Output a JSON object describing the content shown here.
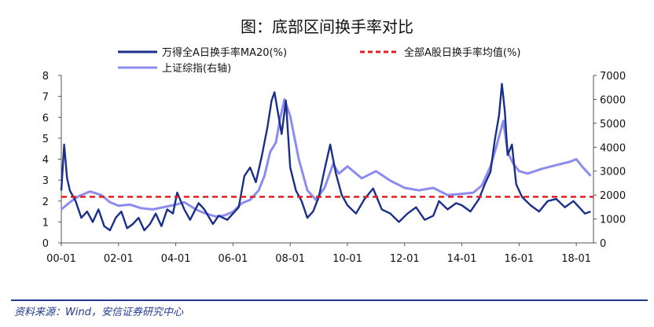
{
  "title": "图：底部区间换手率对比",
  "source": "资料来源：Wind，安信证券研究中心",
  "chart_data": {
    "type": "line",
    "x_tick_labels": [
      "00-01",
      "02-01",
      "04-01",
      "06-01",
      "08-01",
      "10-01",
      "12-01",
      "14-01",
      "16-01",
      "18-01"
    ],
    "x_range": [
      2000.0,
      2018.6
    ],
    "y_left": {
      "range": [
        0,
        8
      ],
      "ticks": [
        0,
        1,
        2,
        3,
        4,
        5,
        6,
        7,
        8
      ]
    },
    "y_right": {
      "range": [
        0,
        7000
      ],
      "ticks": [
        0,
        1000,
        2000,
        3000,
        4000,
        5000,
        6000,
        7000
      ]
    },
    "grid": false,
    "legend_position": "top",
    "series": [
      {
        "name": "万得全A日换手率MA20(%)",
        "axis": "left",
        "color": "#1a2f8a",
        "style": "solid",
        "x": [
          2000.0,
          2000.1,
          2000.2,
          2000.3,
          2000.5,
          2000.7,
          2000.9,
          2001.1,
          2001.3,
          2001.5,
          2001.7,
          2001.9,
          2002.1,
          2002.3,
          2002.5,
          2002.7,
          2002.9,
          2003.1,
          2003.3,
          2003.5,
          2003.7,
          2003.9,
          2004.05,
          2004.3,
          2004.5,
          2004.8,
          2005.0,
          2005.3,
          2005.5,
          2005.8,
          2006.0,
          2006.2,
          2006.4,
          2006.6,
          2006.8,
          2007.0,
          2007.2,
          2007.35,
          2007.45,
          2007.55,
          2007.7,
          2007.85,
          2008.0,
          2008.2,
          2008.4,
          2008.6,
          2008.8,
          2009.0,
          2009.2,
          2009.4,
          2009.6,
          2009.8,
          2010.0,
          2010.3,
          2010.6,
          2010.9,
          2011.2,
          2011.5,
          2011.8,
          2012.1,
          2012.4,
          2012.7,
          2013.0,
          2013.2,
          2013.5,
          2013.8,
          2014.0,
          2014.3,
          2014.6,
          2014.8,
          2015.0,
          2015.15,
          2015.3,
          2015.4,
          2015.5,
          2015.6,
          2015.75,
          2015.9,
          2016.1,
          2016.4,
          2016.7,
          2017.0,
          2017.3,
          2017.6,
          2017.9,
          2018.1,
          2018.3,
          2018.5
        ],
        "values": [
          2.5,
          4.7,
          3.1,
          2.5,
          2.0,
          1.2,
          1.5,
          1.0,
          1.6,
          0.8,
          0.6,
          1.2,
          1.5,
          0.7,
          0.9,
          1.2,
          0.6,
          0.9,
          1.4,
          0.8,
          1.6,
          1.4,
          2.4,
          1.6,
          1.1,
          1.9,
          1.6,
          0.9,
          1.3,
          1.1,
          1.4,
          1.7,
          3.2,
          3.6,
          2.9,
          4.1,
          5.5,
          6.8,
          7.2,
          6.4,
          5.2,
          6.8,
          3.6,
          2.5,
          2.0,
          1.2,
          1.5,
          2.2,
          3.5,
          4.7,
          3.3,
          2.3,
          1.8,
          1.4,
          2.1,
          2.6,
          1.6,
          1.4,
          1.0,
          1.4,
          1.7,
          1.1,
          1.3,
          2.0,
          1.6,
          1.9,
          1.8,
          1.5,
          2.1,
          2.8,
          3.4,
          4.9,
          6.1,
          7.6,
          6.3,
          4.2,
          4.7,
          2.8,
          2.2,
          1.8,
          1.5,
          2.0,
          2.1,
          1.7,
          2.0,
          1.7,
          1.4,
          1.5
        ]
      },
      {
        "name": "全部A股日换手率均值(%)",
        "axis": "left",
        "color": "#e02020",
        "style": "dashed",
        "x": [
          2000.0,
          2018.6
        ],
        "values": [
          2.2,
          2.2
        ]
      },
      {
        "name": "上证综指(右轴)",
        "axis": "right",
        "color": "#8c8cf0",
        "style": "solid",
        "x": [
          2000.0,
          2000.3,
          2000.6,
          2001.0,
          2001.4,
          2001.7,
          2002.0,
          2002.4,
          2002.8,
          2003.2,
          2003.6,
          2004.0,
          2004.3,
          2004.7,
          2005.0,
          2005.4,
          2005.7,
          2006.0,
          2006.3,
          2006.6,
          2006.9,
          2007.1,
          2007.3,
          2007.5,
          2007.65,
          2007.8,
          2008.0,
          2008.3,
          2008.6,
          2008.9,
          2009.2,
          2009.5,
          2009.7,
          2010.0,
          2010.5,
          2011.0,
          2011.5,
          2012.0,
          2012.5,
          2013.0,
          2013.5,
          2014.0,
          2014.4,
          2014.7,
          2015.0,
          2015.2,
          2015.45,
          2015.6,
          2015.8,
          2016.0,
          2016.3,
          2016.8,
          2017.3,
          2017.8,
          2018.0,
          2018.2,
          2018.5
        ],
        "values": [
          1400,
          1700,
          1950,
          2150,
          2000,
          1700,
          1550,
          1600,
          1450,
          1400,
          1500,
          1600,
          1700,
          1400,
          1250,
          1100,
          1150,
          1300,
          1650,
          1800,
          2200,
          2800,
          3800,
          4200,
          5200,
          6000,
          5300,
          3500,
          2200,
          1800,
          2300,
          3300,
          2900,
          3200,
          2700,
          3000,
          2600,
          2300,
          2200,
          2300,
          2000,
          2050,
          2100,
          2400,
          3200,
          4000,
          5100,
          3800,
          3300,
          3000,
          2900,
          3100,
          3250,
          3400,
          3500,
          3200,
          2800
        ]
      }
    ]
  }
}
